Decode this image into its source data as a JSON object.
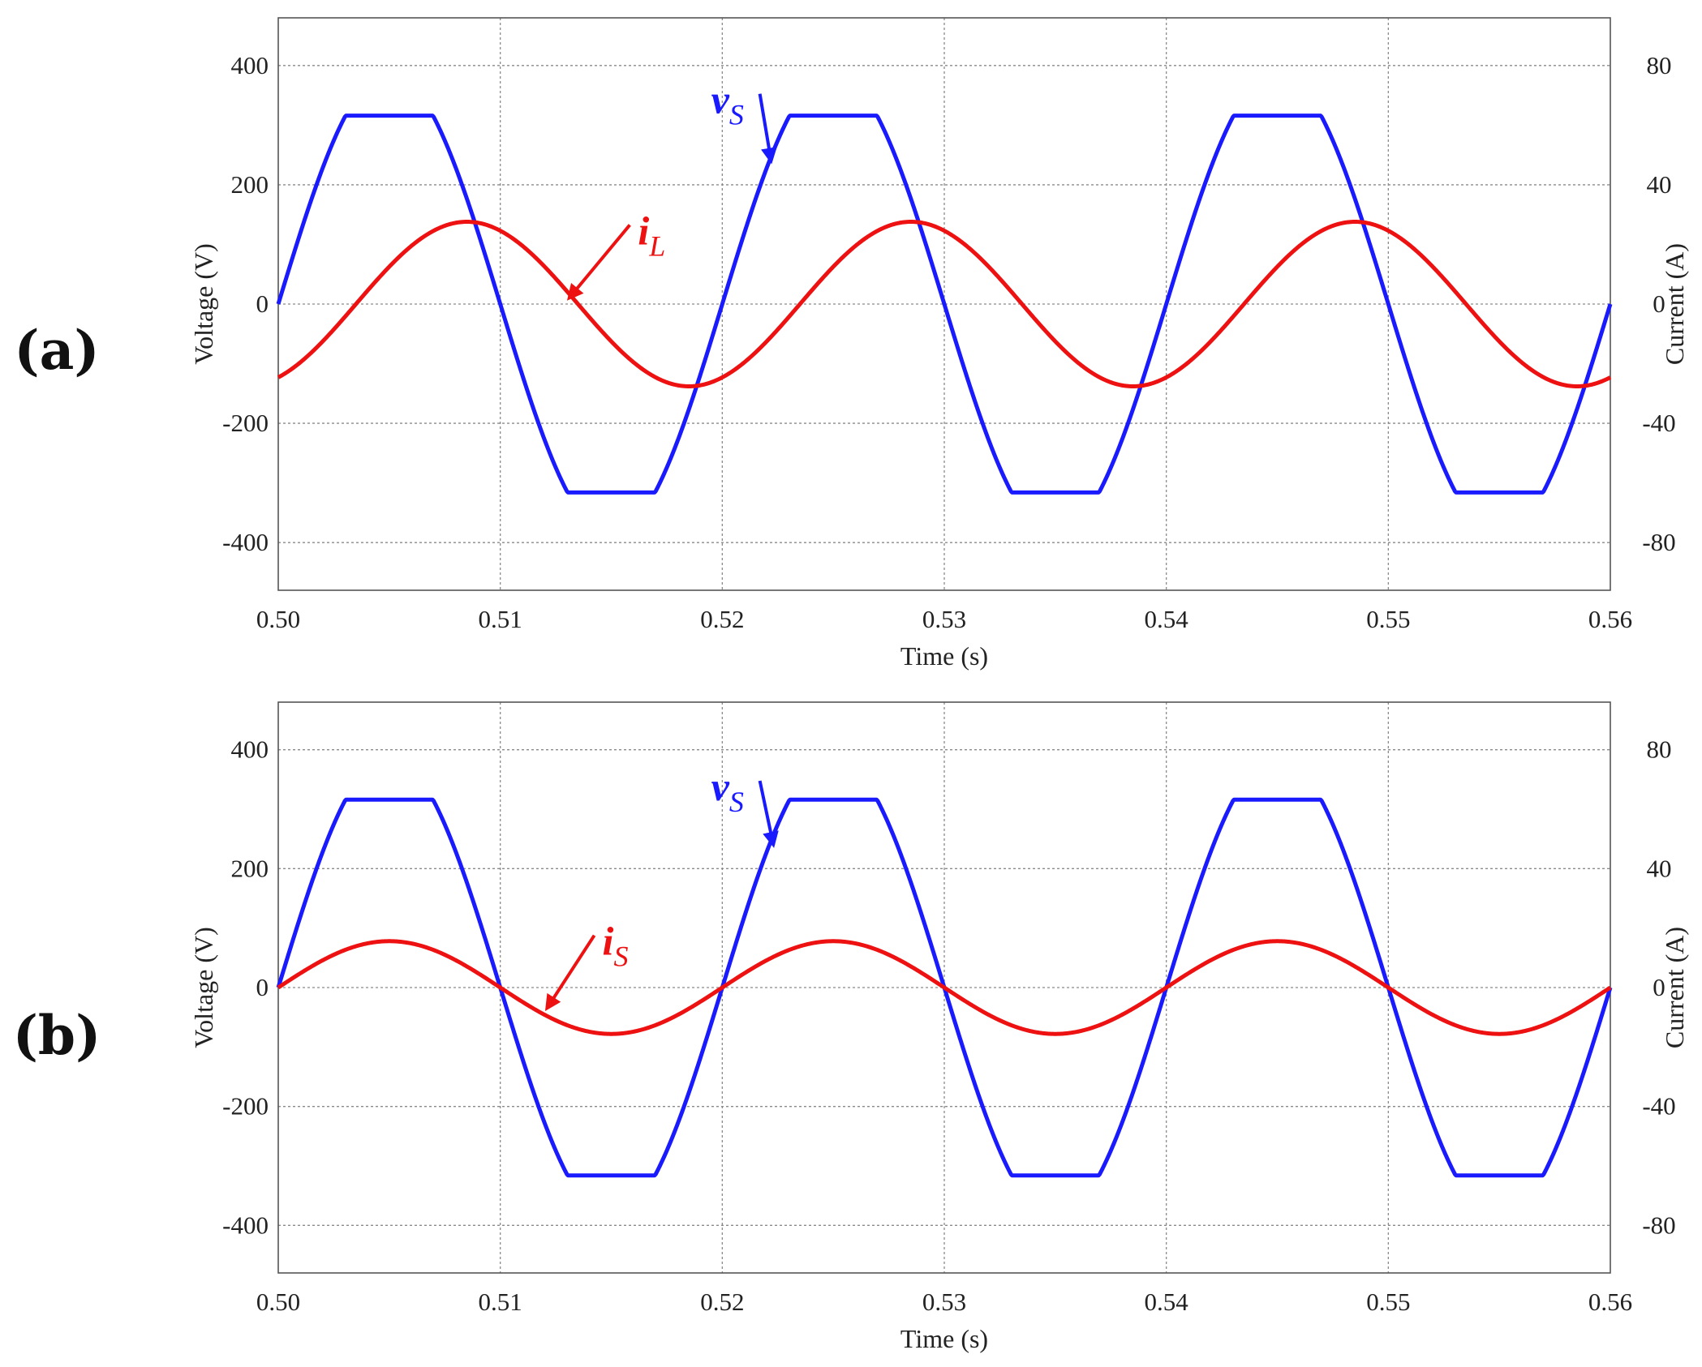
{
  "panels": [
    {
      "label": "(a)",
      "chart_data": {
        "type": "line",
        "title": "",
        "xlabel": "Time (s)",
        "ylabel_left": "Voltage (V)",
        "ylabel_right": "Current (A)",
        "xlim": [
          0.5,
          0.56
        ],
        "ylim_left": [
          -480,
          480
        ],
        "ylim_right": [
          -96,
          96
        ],
        "x_ticks": [
          "0.50",
          "0.51",
          "0.52",
          "0.53",
          "0.54",
          "0.55",
          "0.56"
        ],
        "y_left_ticks": [
          "400",
          "200",
          "0",
          "-200",
          "-400"
        ],
        "y_right_ticks": [
          "80",
          "40",
          "0",
          "-40",
          "-80"
        ],
        "grid": true,
        "series": [
          {
            "name": "vS",
            "axis": "left",
            "color": "#1a1aff",
            "shape": "clipped-sine",
            "frequency_hz": 50,
            "amplitude": 388,
            "clip_level": 316,
            "phase_deg": 0,
            "unit": "V"
          },
          {
            "name": "iL",
            "axis": "right",
            "color": "#ee1111",
            "shape": "sine",
            "frequency_hz": 50,
            "amplitude": 27.6,
            "time_of_peak": 0.5085,
            "unit": "A"
          }
        ],
        "annotations": [
          {
            "symbol": "v",
            "subscript": "S",
            "color": "#1a1aff",
            "x": 0.5195,
            "y": 320,
            "axis": "left",
            "arrow_to_x": 0.5222,
            "arrow_to_y": 240
          },
          {
            "symbol": "i",
            "subscript": "L",
            "color": "#ee1111",
            "x": 0.5162,
            "y": 100,
            "axis": "left",
            "arrow_to_x": 0.5131,
            "arrow_to_y": 10
          }
        ]
      }
    },
    {
      "label": "(b)",
      "chart_data": {
        "type": "line",
        "title": "",
        "xlabel": "Time (s)",
        "ylabel_left": "Voltage (V)",
        "ylabel_right": "Current (A)",
        "xlim": [
          0.5,
          0.56
        ],
        "ylim_left": [
          -480,
          480
        ],
        "ylim_right": [
          -96,
          96
        ],
        "x_ticks": [
          "0.50",
          "0.51",
          "0.52",
          "0.53",
          "0.54",
          "0.55",
          "0.56"
        ],
        "y_left_ticks": [
          "400",
          "200",
          "0",
          "-200",
          "-400"
        ],
        "y_right_ticks": [
          "80",
          "40",
          "0",
          "-40",
          "-80"
        ],
        "grid": true,
        "series": [
          {
            "name": "vS",
            "axis": "left",
            "color": "#1a1aff",
            "shape": "clipped-sine",
            "frequency_hz": 50,
            "amplitude": 388,
            "clip_level": 316,
            "phase_deg": 0,
            "unit": "V"
          },
          {
            "name": "iS",
            "axis": "right",
            "color": "#ee1111",
            "shape": "sine",
            "frequency_hz": 50,
            "amplitude": 15.6,
            "time_of_peak": 0.505,
            "unit": "A"
          }
        ],
        "annotations": [
          {
            "symbol": "v",
            "subscript": "S",
            "color": "#1a1aff",
            "x": 0.5195,
            "y": 315,
            "axis": "left",
            "arrow_to_x": 0.5223,
            "arrow_to_y": 240
          },
          {
            "symbol": "i",
            "subscript": "S",
            "color": "#ee1111",
            "x": 0.5146,
            "y": 55,
            "axis": "left",
            "arrow_to_x": 0.5121,
            "arrow_to_y": -35
          }
        ]
      }
    }
  ]
}
